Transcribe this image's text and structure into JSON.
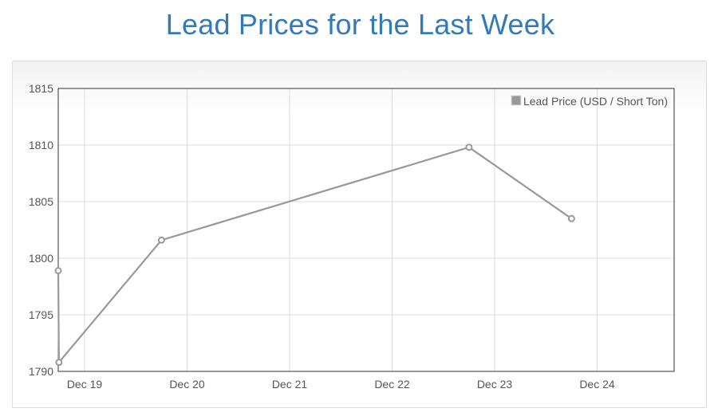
{
  "title": "Lead Prices for the Last Week",
  "chart_data": {
    "type": "line",
    "x_ticks": [
      "Dec 19",
      "Dec 20",
      "Dec 21",
      "Dec 22",
      "Dec 23",
      "Dec 24"
    ],
    "y_ticks": [
      "1815",
      "1810",
      "1805",
      "1800",
      "1795",
      "1790"
    ],
    "ylim": [
      1790,
      1815
    ],
    "y_step": 5,
    "grid": true,
    "legend_position": "top-right",
    "series": [
      {
        "name": "Lead Price (USD / Short Ton)",
        "color": "#999999",
        "points": [
          {
            "x": "Dec 18",
            "y": 1798.9
          },
          {
            "x": "Dec 19",
            "y": 1790.8
          },
          {
            "x": "Dec 20",
            "y": 1801.6
          },
          {
            "x": "Dec 23",
            "y": 1809.8
          },
          {
            "x": "Dec 24",
            "y": 1803.5
          }
        ]
      }
    ]
  }
}
